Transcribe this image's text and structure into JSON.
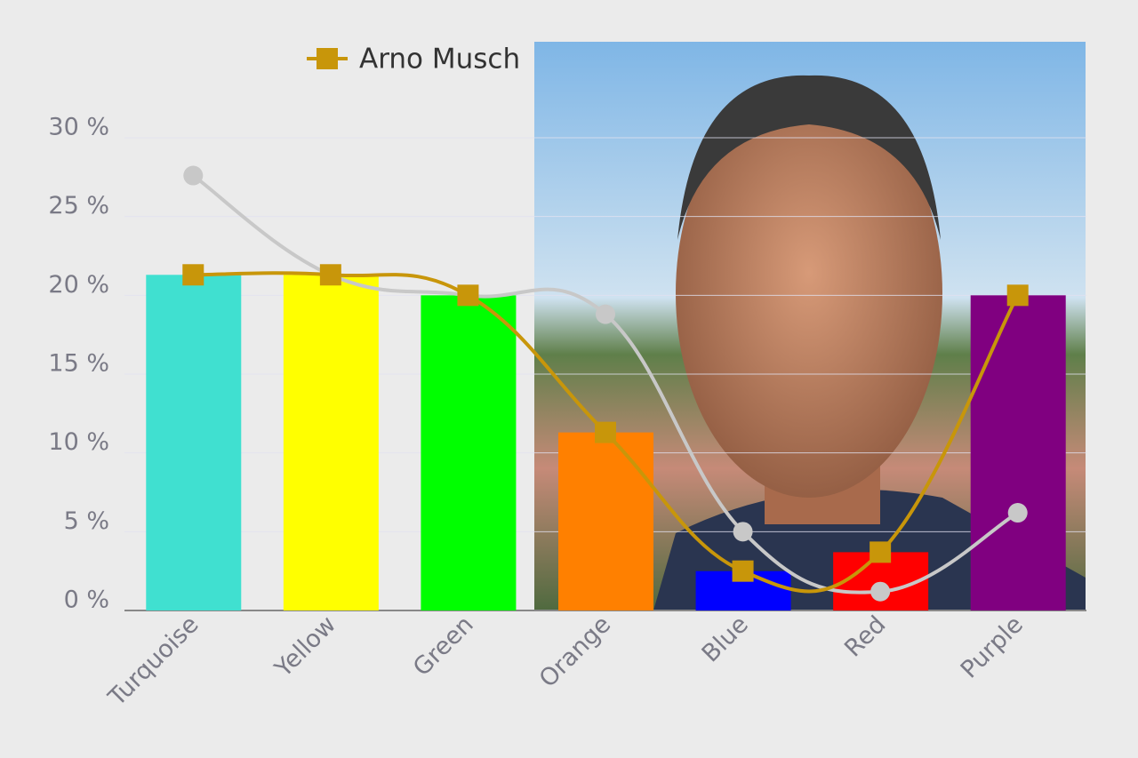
{
  "chart_data": {
    "type": "bar",
    "categories": [
      "Turquoise",
      "Yellow",
      "Green",
      "Orange",
      "Blue",
      "Red",
      "Purple"
    ],
    "values": [
      21.3,
      21.3,
      20,
      11.3,
      2.5,
      3.7,
      20
    ],
    "colors": [
      "#40e0d0",
      "#ffff00",
      "#00ff00",
      "#ff8000",
      "#0000ff",
      "#ff0000",
      "#800080"
    ],
    "lines": [
      {
        "name": "Arno Musch",
        "color": "#c8960a",
        "marker": "square",
        "values": [
          21.3,
          21.3,
          20,
          11.3,
          2.5,
          3.7,
          20
        ]
      },
      {
        "color": "#c8c8c8",
        "marker": "circle",
        "values": [
          27.6,
          21.3,
          20,
          18.8,
          5,
          1.2,
          6.2
        ]
      }
    ],
    "ylim": [
      0,
      30
    ],
    "yticks": [
      {
        "value": 0,
        "label": "0 %"
      },
      {
        "value": 5,
        "label": "5 %"
      },
      {
        "value": 10,
        "label": "10 %"
      },
      {
        "value": 15,
        "label": "15 %"
      },
      {
        "value": 20,
        "label": "20 %"
      },
      {
        "value": 25,
        "label": "25 %"
      },
      {
        "value": 30,
        "label": "30 %"
      }
    ],
    "grid": true
  }
}
